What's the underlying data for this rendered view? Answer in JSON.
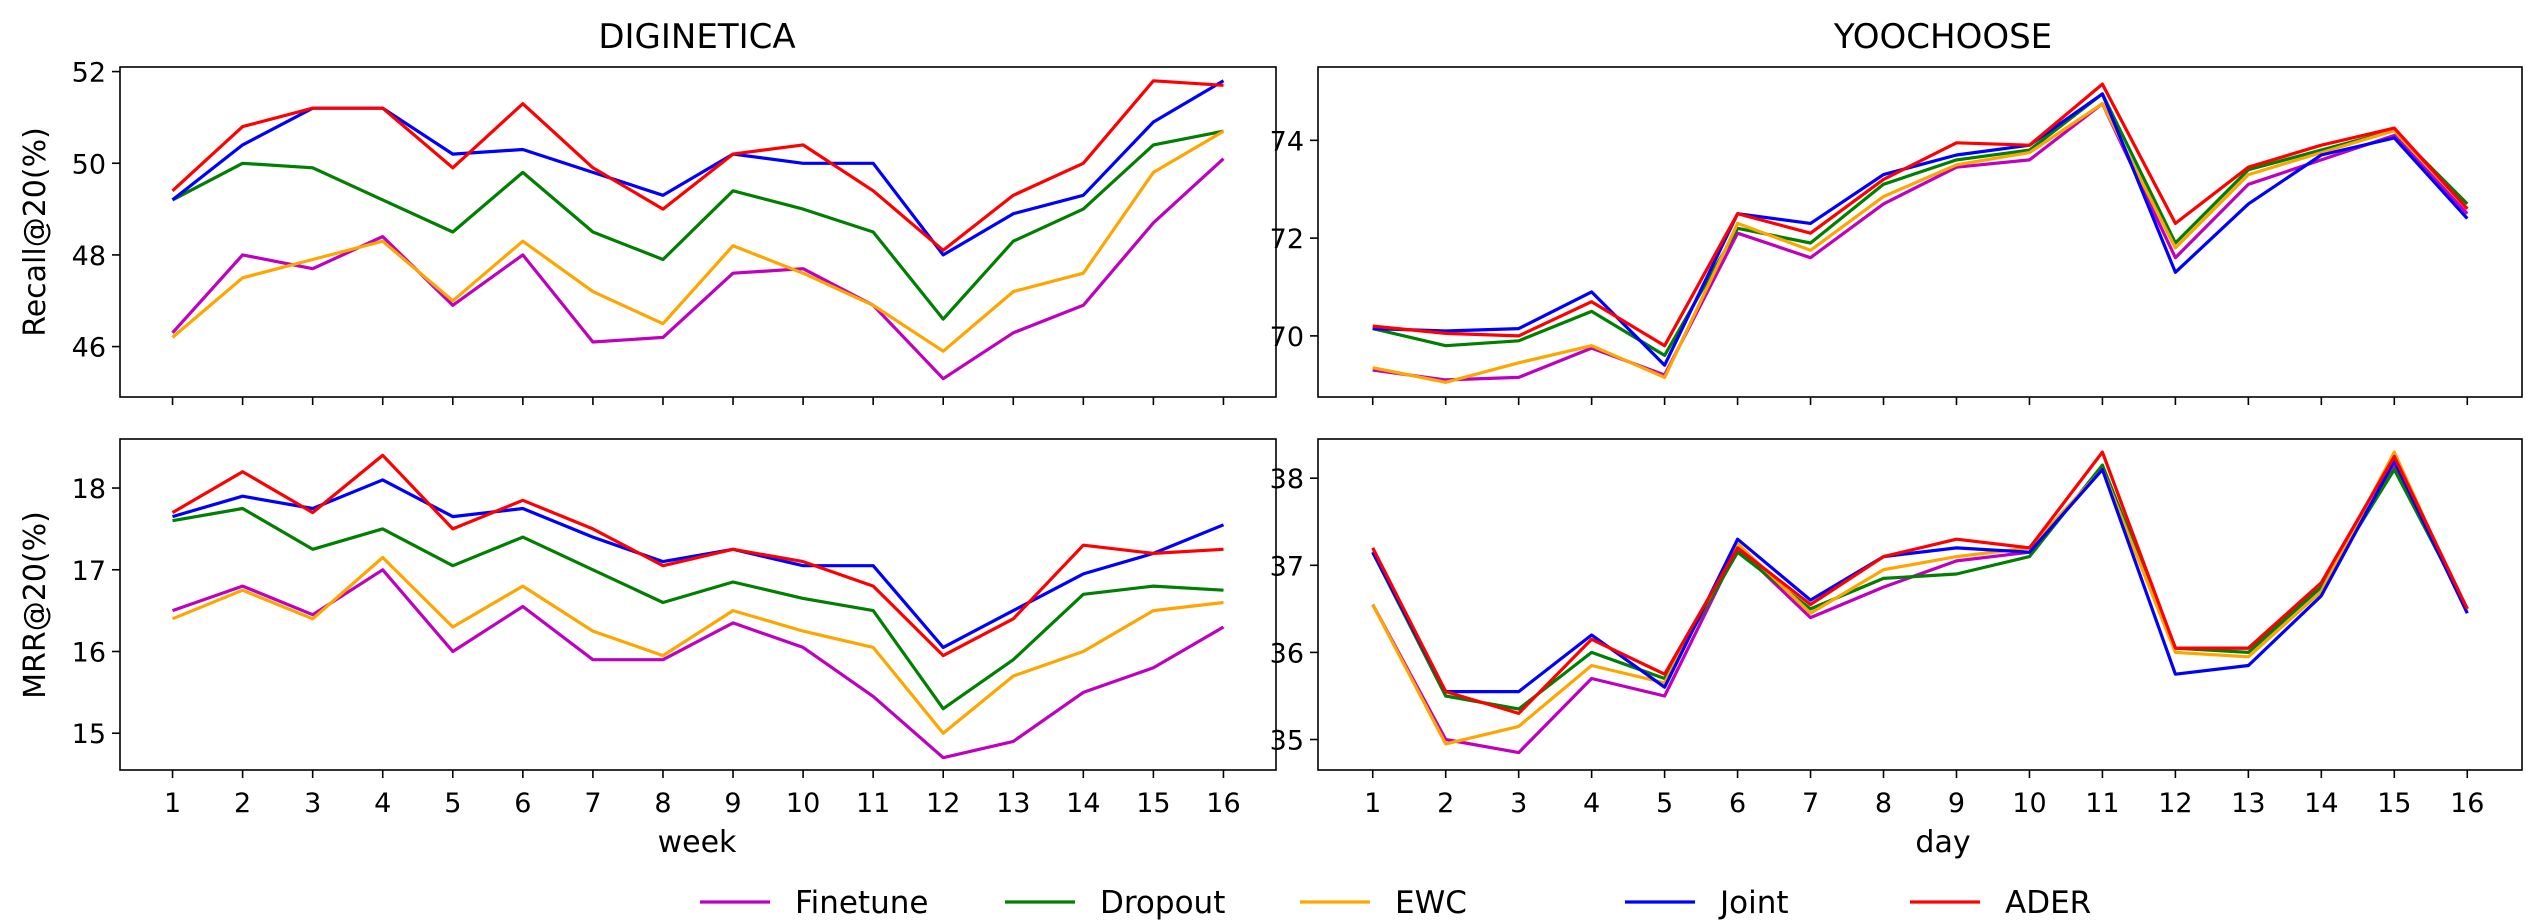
{
  "legend": {
    "placement": "bottom-center",
    "entries": [
      {
        "name": "Finetune",
        "color": "#bf00bf"
      },
      {
        "name": "Dropout",
        "color": "#008000"
      },
      {
        "name": "EWC",
        "color": "#ffa500"
      },
      {
        "name": "Joint",
        "color": "#0000ff"
      },
      {
        "name": "ADER",
        "color": "#ff0000"
      }
    ]
  },
  "columns": [
    {
      "title": "DIGINETICA",
      "xlabel": "week"
    },
    {
      "title": "YOOCHOOSE",
      "xlabel": "day"
    }
  ],
  "rows": [
    {
      "ylabel": "Recall@20(%)"
    },
    {
      "ylabel": "MRR@20(%)"
    }
  ],
  "chart_data": [
    {
      "type": "line",
      "panel": "top-left",
      "x": [
        1,
        2,
        3,
        4,
        5,
        6,
        7,
        8,
        9,
        10,
        11,
        12,
        13,
        14,
        15,
        16
      ],
      "ylim": [
        44.9,
        52.1
      ],
      "yticks": [
        46,
        48,
        50,
        52
      ],
      "grid": false,
      "series": [
        {
          "name": "Finetune",
          "values": [
            46.3,
            48.0,
            47.7,
            48.4,
            46.9,
            48.0,
            46.1,
            46.2,
            47.6,
            47.7,
            46.9,
            45.3,
            46.3,
            46.9,
            48.7,
            50.1
          ]
        },
        {
          "name": "Dropout",
          "values": [
            49.2,
            50.0,
            49.9,
            49.2,
            48.5,
            49.8,
            48.5,
            47.9,
            49.4,
            49.0,
            48.5,
            46.6,
            48.3,
            49.0,
            50.4,
            50.7
          ]
        },
        {
          "name": "EWC",
          "values": [
            46.2,
            47.5,
            47.9,
            48.3,
            47.0,
            48.3,
            47.2,
            46.5,
            48.2,
            47.6,
            46.9,
            45.9,
            47.2,
            47.6,
            49.8,
            50.7
          ]
        },
        {
          "name": "Joint",
          "values": [
            49.2,
            50.4,
            51.2,
            51.2,
            50.2,
            50.3,
            49.8,
            49.3,
            50.2,
            50.0,
            50.0,
            48.0,
            48.9,
            49.3,
            50.9,
            51.8
          ]
        },
        {
          "name": "ADER",
          "values": [
            49.4,
            50.8,
            51.2,
            51.2,
            49.9,
            51.3,
            49.9,
            49.0,
            50.2,
            50.4,
            49.4,
            48.1,
            49.3,
            50.0,
            51.8,
            51.7
          ]
        }
      ]
    },
    {
      "type": "line",
      "panel": "top-right",
      "x": [
        1,
        2,
        3,
        4,
        5,
        6,
        7,
        8,
        9,
        10,
        11,
        12,
        13,
        14,
        15,
        16
      ],
      "ylim": [
        68.75,
        75.5
      ],
      "yticks": [
        70,
        72,
        74
      ],
      "grid": false,
      "series": [
        {
          "name": "Finetune",
          "values": [
            69.3,
            69.1,
            69.15,
            69.75,
            69.2,
            72.1,
            71.6,
            72.7,
            73.45,
            73.6,
            74.75,
            71.6,
            73.1,
            73.6,
            74.1,
            72.5
          ]
        },
        {
          "name": "Dropout",
          "values": [
            70.15,
            69.8,
            69.9,
            70.5,
            69.6,
            72.2,
            71.9,
            73.1,
            73.6,
            73.8,
            74.95,
            71.9,
            73.4,
            73.8,
            74.2,
            72.7
          ]
        },
        {
          "name": "EWC",
          "values": [
            69.35,
            69.05,
            69.45,
            69.8,
            69.15,
            72.3,
            71.75,
            72.85,
            73.5,
            73.75,
            74.75,
            71.8,
            73.3,
            73.75,
            74.2,
            72.6
          ]
        },
        {
          "name": "Joint",
          "values": [
            70.15,
            70.1,
            70.15,
            70.9,
            69.4,
            72.5,
            72.3,
            73.3,
            73.7,
            73.9,
            74.95,
            71.3,
            72.7,
            73.7,
            74.05,
            72.4
          ]
        },
        {
          "name": "ADER",
          "values": [
            70.2,
            70.05,
            70.0,
            70.7,
            69.8,
            72.5,
            72.1,
            73.2,
            73.95,
            73.9,
            75.15,
            72.3,
            73.45,
            73.9,
            74.25,
            72.6
          ]
        }
      ]
    },
    {
      "type": "line",
      "panel": "bottom-left",
      "x": [
        1,
        2,
        3,
        4,
        5,
        6,
        7,
        8,
        9,
        10,
        11,
        12,
        13,
        14,
        15,
        16
      ],
      "ylim": [
        14.55,
        18.6
      ],
      "yticks": [
        15,
        16,
        17,
        18
      ],
      "grid": false,
      "series": [
        {
          "name": "Finetune",
          "values": [
            16.5,
            16.8,
            16.45,
            17.0,
            16.0,
            16.55,
            15.9,
            15.9,
            16.35,
            16.05,
            15.45,
            14.7,
            14.9,
            15.5,
            15.8,
            16.3
          ]
        },
        {
          "name": "Dropout",
          "values": [
            17.6,
            17.75,
            17.25,
            17.5,
            17.05,
            17.4,
            17.0,
            16.6,
            16.85,
            16.65,
            16.5,
            15.3,
            15.9,
            16.7,
            16.8,
            16.75
          ]
        },
        {
          "name": "EWC",
          "values": [
            16.4,
            16.75,
            16.4,
            17.15,
            16.3,
            16.8,
            16.25,
            15.95,
            16.5,
            16.25,
            16.05,
            15.0,
            15.7,
            16.0,
            16.5,
            16.6
          ]
        },
        {
          "name": "Joint",
          "values": [
            17.65,
            17.9,
            17.75,
            18.1,
            17.65,
            17.75,
            17.4,
            17.1,
            17.25,
            17.05,
            17.05,
            16.05,
            16.5,
            16.95,
            17.2,
            17.55
          ]
        },
        {
          "name": "ADER",
          "values": [
            17.7,
            18.2,
            17.7,
            18.4,
            17.5,
            17.85,
            17.5,
            17.05,
            17.25,
            17.1,
            16.8,
            15.95,
            16.4,
            17.3,
            17.2,
            17.25
          ]
        }
      ]
    },
    {
      "type": "line",
      "panel": "bottom-right",
      "x": [
        1,
        2,
        3,
        4,
        5,
        6,
        7,
        8,
        9,
        10,
        11,
        12,
        13,
        14,
        15,
        16
      ],
      "ylim": [
        34.65,
        38.45
      ],
      "yticks": [
        35,
        36,
        37,
        38
      ],
      "grid": false,
      "series": [
        {
          "name": "Finetune",
          "values": [
            36.55,
            35.0,
            34.85,
            35.7,
            35.5,
            37.2,
            36.4,
            36.75,
            37.05,
            37.15,
            38.1,
            36.05,
            36.05,
            36.75,
            38.15,
            36.5
          ]
        },
        {
          "name": "Dropout",
          "values": [
            37.15,
            35.5,
            35.35,
            36.0,
            35.7,
            37.15,
            36.5,
            36.85,
            36.9,
            37.1,
            38.15,
            36.05,
            36.0,
            36.75,
            38.1,
            36.5
          ]
        },
        {
          "name": "EWC",
          "values": [
            36.55,
            34.95,
            35.15,
            35.85,
            35.65,
            37.25,
            36.45,
            36.95,
            37.1,
            37.2,
            38.1,
            36.0,
            35.95,
            36.7,
            38.3,
            36.45
          ]
        },
        {
          "name": "Joint",
          "values": [
            37.15,
            35.55,
            35.55,
            36.2,
            35.6,
            37.3,
            36.6,
            37.1,
            37.2,
            37.15,
            38.1,
            35.75,
            35.85,
            36.65,
            38.2,
            36.45
          ]
        },
        {
          "name": "ADER",
          "values": [
            37.2,
            35.55,
            35.3,
            36.15,
            35.75,
            37.2,
            36.55,
            37.1,
            37.3,
            37.2,
            38.3,
            36.05,
            36.05,
            36.8,
            38.25,
            36.5
          ]
        }
      ]
    }
  ]
}
